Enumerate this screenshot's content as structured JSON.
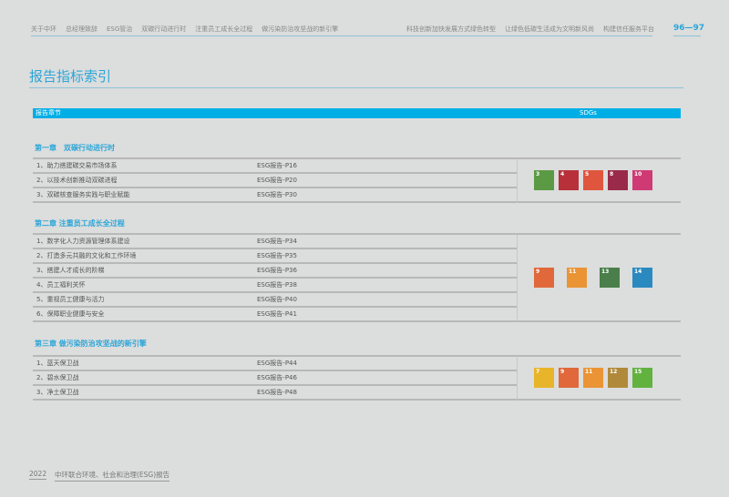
{
  "nav_left": [
    "关于中环",
    "总经理致辞",
    "ESG管治",
    "双碳行动进行时",
    "注重员工成长全过程",
    "做污染防治攻坚战的新引擎"
  ],
  "nav_right": [
    "科技创新加快发展方式绿色转型",
    "让绿色低碳生活成为文明新风尚",
    "构建信任服务平台"
  ],
  "pages": "96—97",
  "title": "报告指标索引",
  "header": {
    "col1": "报告章节",
    "col2": "SDGs"
  },
  "chapters": [
    {
      "title": "第一章　双碳行动进行时",
      "rows": [
        [
          "1、助力搭建碳交易市场体系",
          "ESG报告-P16"
        ],
        [
          "2、以技术创新推动双碳进程",
          "ESG报告-P20"
        ],
        [
          "3、双碳核查服务实践与职业赋能",
          "ESG报告-P30"
        ]
      ],
      "sdgs": [
        3,
        4,
        5,
        8,
        10
      ]
    },
    {
      "title": "第二章  注重员工成长全过程",
      "rows": [
        [
          "1、数字化人力资源管理体系建设",
          "ESG报告-P34"
        ],
        [
          "2、打造多元共融的文化和工作环境",
          "ESG报告-P35"
        ],
        [
          "3、搭建人才成长的阶梯",
          "ESG报告-P36"
        ],
        [
          "4、员工福利关怀",
          "ESG报告-P38"
        ],
        [
          "5、重视员工健康与活力",
          "ESG报告-P40"
        ],
        [
          "6、保障职业健康与安全",
          "ESG报告-P41"
        ]
      ],
      "sdgs": [
        9,
        11,
        13,
        14
      ]
    },
    {
      "title": "第三章  做污染防治攻坚战的新引擎",
      "rows": [
        [
          "1、蓝天保卫战",
          "ESG报告-P44"
        ],
        [
          "2、碧水保卫战",
          "ESG报告-P46"
        ],
        [
          "3、净土保卫战",
          "ESG报告-P48"
        ]
      ],
      "sdgs": [
        7,
        9,
        11,
        12,
        15
      ]
    }
  ],
  "sdg_colors": {
    "3": "#5a9a45",
    "4": "#b8303a",
    "5": "#e0553d",
    "7": "#e8b42a",
    "8": "#9a2a4a",
    "9": "#e0683a",
    "10": "#d03a74",
    "11": "#ea9435",
    "12": "#b08a3a",
    "13": "#4a7e4a",
    "14": "#2a8ac0",
    "15": "#62b240"
  },
  "footer": {
    "year": "2022",
    "name": "中环联合环境、社会和治理(ESG)报告"
  }
}
